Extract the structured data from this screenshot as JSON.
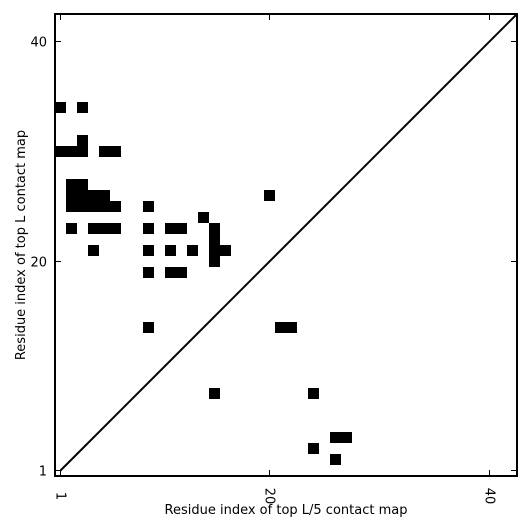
{
  "chart_data": {
    "type": "heatmap",
    "title": "",
    "xlabel": "Residue index of top L/5 contact map",
    "ylabel": "Residue index of top L contact map",
    "xlim": [
      0.5,
      42.5
    ],
    "ylim": [
      0.5,
      42.5
    ],
    "x_ticks": [
      {
        "value": 1,
        "label": "1"
      },
      {
        "value": 20,
        "label": "20"
      },
      {
        "value": 40,
        "label": "40"
      }
    ],
    "y_ticks": [
      {
        "value": 1,
        "label": "1"
      },
      {
        "value": 20,
        "label": "20"
      },
      {
        "value": 40,
        "label": "40"
      }
    ],
    "diagonal": true,
    "grid": false,
    "cell_color": "#000000",
    "cells": [
      [
        1,
        34
      ],
      [
        3,
        34
      ],
      [
        1,
        30
      ],
      [
        2,
        30
      ],
      [
        3,
        30
      ],
      [
        3,
        31
      ],
      [
        5,
        30
      ],
      [
        6,
        30
      ],
      [
        2,
        27
      ],
      [
        3,
        27
      ],
      [
        2,
        26
      ],
      [
        3,
        26
      ],
      [
        4,
        26
      ],
      [
        5,
        26
      ],
      [
        2,
        25
      ],
      [
        3,
        25
      ],
      [
        4,
        25
      ],
      [
        5,
        25
      ],
      [
        6,
        25
      ],
      [
        9,
        25
      ],
      [
        20,
        26
      ],
      [
        14,
        24
      ],
      [
        2,
        23
      ],
      [
        4,
        23
      ],
      [
        5,
        23
      ],
      [
        6,
        23
      ],
      [
        9,
        23
      ],
      [
        11,
        23
      ],
      [
        12,
        23
      ],
      [
        15,
        23
      ],
      [
        15,
        22
      ],
      [
        15,
        21
      ],
      [
        16,
        21
      ],
      [
        4,
        21
      ],
      [
        9,
        21
      ],
      [
        11,
        21
      ],
      [
        13,
        21
      ],
      [
        15,
        20
      ],
      [
        9,
        19
      ],
      [
        11,
        19
      ],
      [
        12,
        19
      ],
      [
        9,
        14
      ],
      [
        21,
        14
      ],
      [
        22,
        14
      ],
      [
        15,
        8
      ],
      [
        24,
        8
      ],
      [
        26,
        4
      ],
      [
        27,
        4
      ],
      [
        24,
        3
      ],
      [
        26,
        2
      ]
    ]
  }
}
